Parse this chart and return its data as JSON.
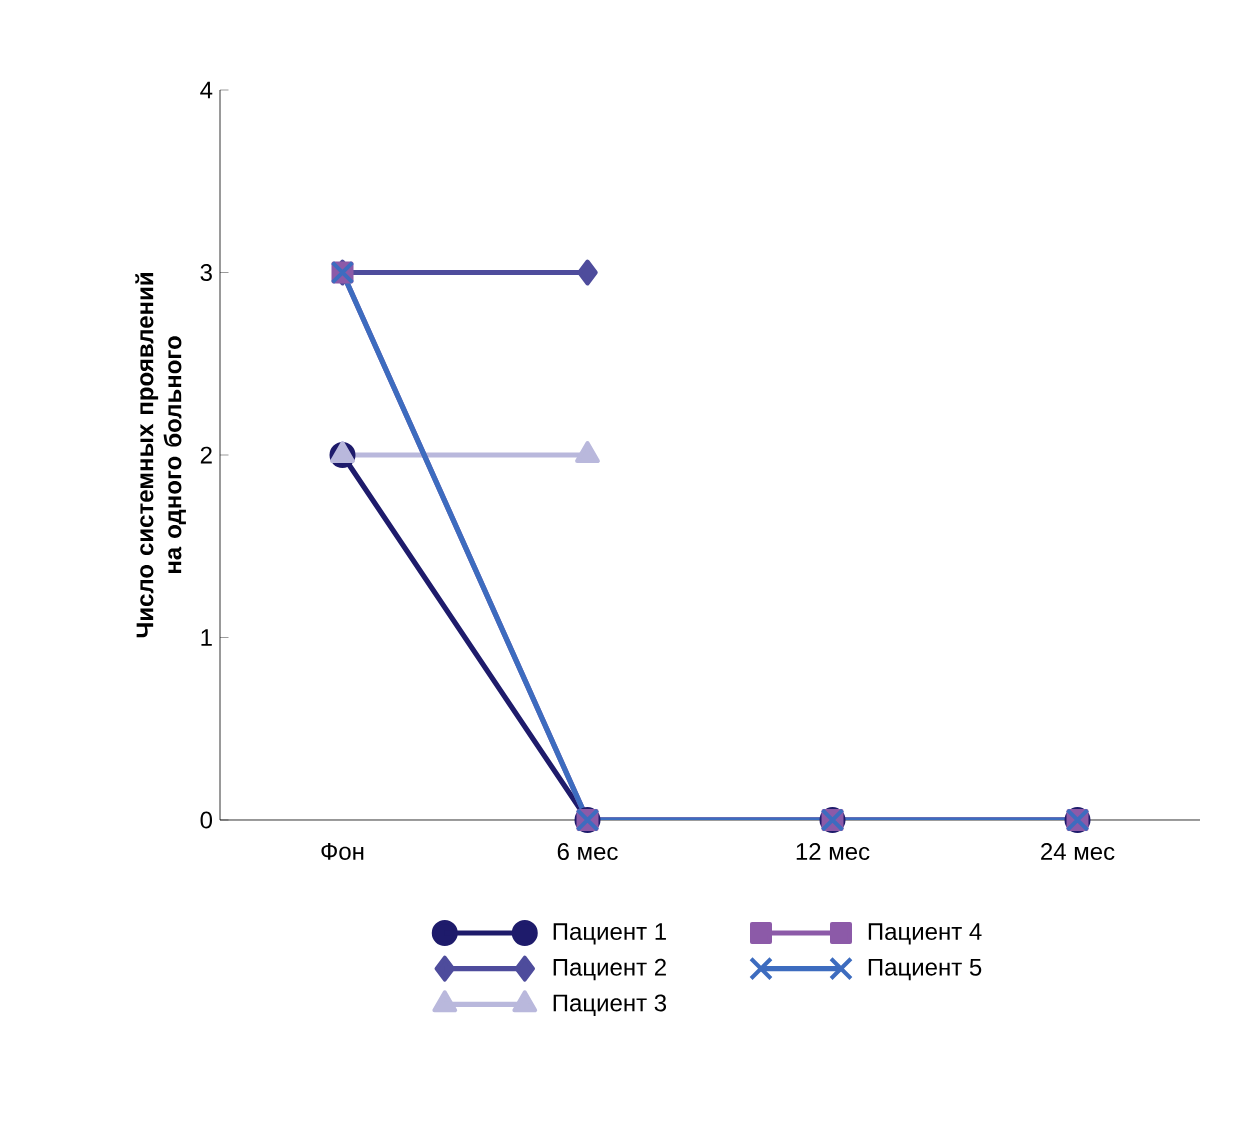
{
  "chart_data": {
    "type": "line",
    "ylabel": "Число системных проявлений на одного больного",
    "categories": [
      "Фон",
      "6 мес",
      "12 мес",
      "24 мес"
    ],
    "ylim": [
      0,
      4
    ],
    "yticks": [
      0,
      1,
      2,
      3,
      4
    ],
    "grid": false,
    "legend": "bottom",
    "line_style": "solid",
    "series": [
      {
        "name": "Пациент 1",
        "color": "#1e1b6b",
        "marker": "circle",
        "values": [
          2,
          0,
          0,
          0
        ]
      },
      {
        "name": "Пациент 2",
        "color": "#4e4c9c",
        "marker": "diamond",
        "values": [
          3,
          3,
          null,
          null
        ]
      },
      {
        "name": "Пациент 3",
        "color": "#b9b8dc",
        "marker": "triangle",
        "values": [
          2,
          2,
          null,
          null
        ]
      },
      {
        "name": "Пациент 4",
        "color": "#8c5aa8",
        "marker": "square",
        "values": [
          3,
          0,
          0,
          0
        ]
      },
      {
        "name": "Пациент 5",
        "color": "#3d6cbf",
        "marker": "cross",
        "values": [
          3,
          0,
          0,
          0
        ]
      }
    ]
  }
}
